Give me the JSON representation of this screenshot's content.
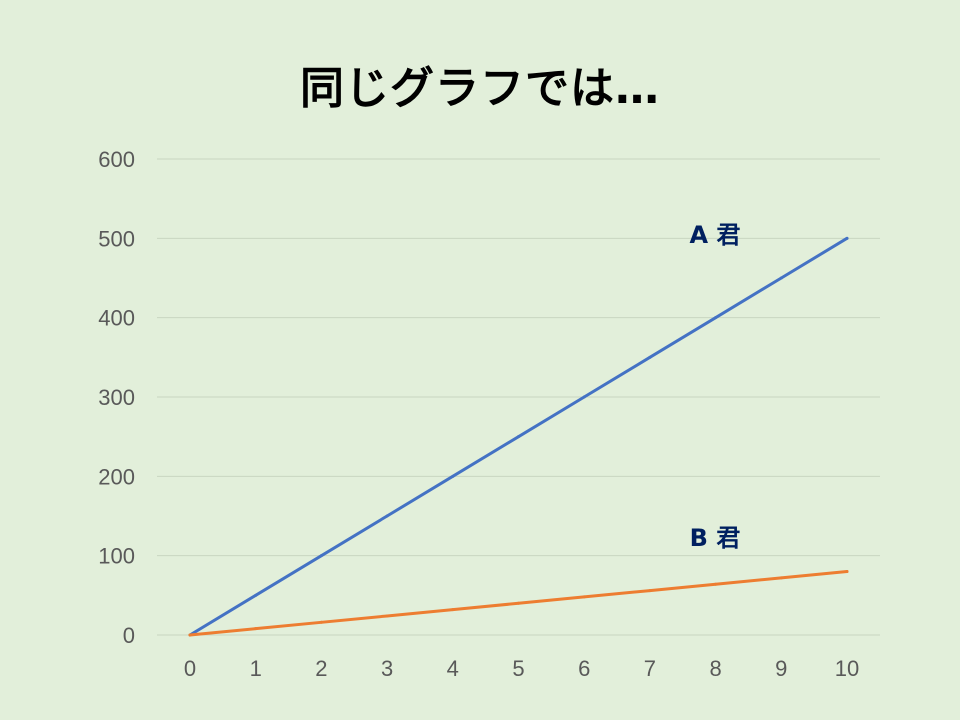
{
  "slide": {
    "title": "同じグラフでは…"
  },
  "chart_data": {
    "type": "line",
    "title": "",
    "xlabel": "",
    "ylabel": "",
    "x": [
      0,
      1,
      2,
      3,
      4,
      5,
      6,
      7,
      8,
      9,
      10
    ],
    "xlim": [
      0,
      10
    ],
    "ylim": [
      0,
      600
    ],
    "y_ticks": [
      0,
      100,
      200,
      300,
      400,
      500,
      600
    ],
    "x_ticks": [
      0,
      1,
      2,
      3,
      4,
      5,
      6,
      7,
      8,
      9,
      10
    ],
    "grid": "horizontal",
    "series": [
      {
        "name": "A 君",
        "color": "#4472c4",
        "label_color": "#002060",
        "values": [
          0,
          50,
          100,
          150,
          200,
          250,
          300,
          350,
          400,
          450,
          500
        ]
      },
      {
        "name": "B 君",
        "color": "#ed7d31",
        "label_color": "#002060",
        "values": [
          0,
          8,
          16,
          24,
          32,
          40,
          48,
          56,
          64,
          72,
          80
        ]
      }
    ],
    "gridline_color": "#c8d6c0",
    "tick_color": "#595959"
  }
}
